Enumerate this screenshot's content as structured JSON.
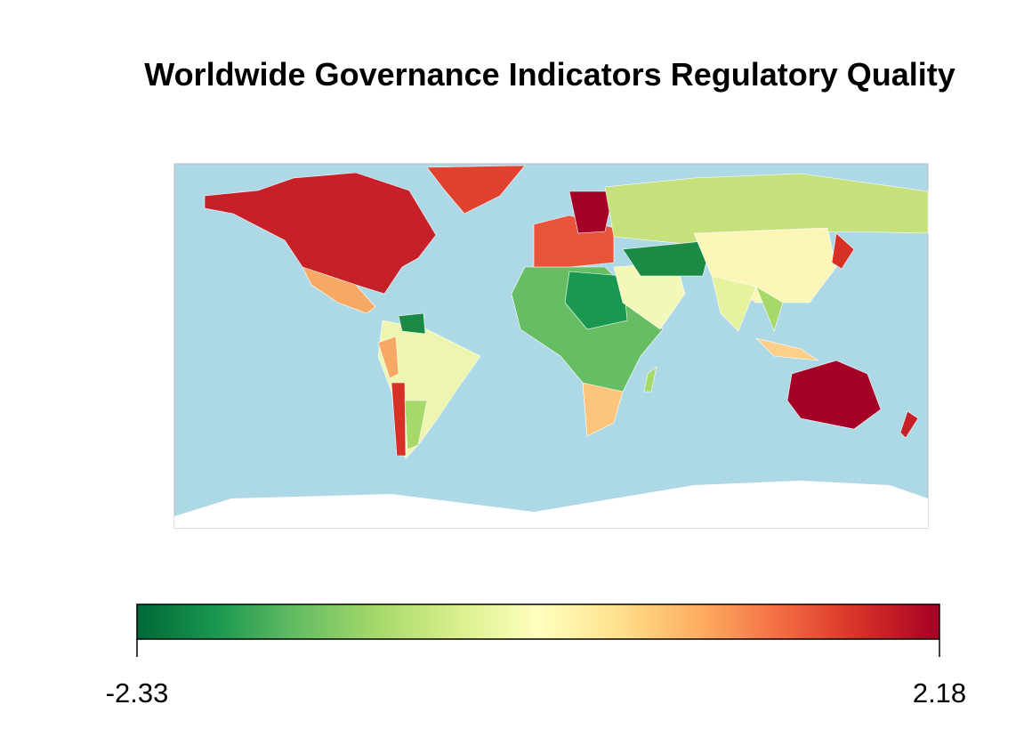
{
  "chart_data": {
    "type": "choropleth",
    "title": "Worldwide Governance Indicators  Regulatory Quality",
    "colorbar": {
      "range": [
        -2.33,
        2.18
      ],
      "ticks": [
        -2.33,
        2.18
      ],
      "colors": [
        "#006837",
        "#1a9850",
        "#66bd63",
        "#a6d96a",
        "#d9ef8b",
        "#ffffbf",
        "#fee08b",
        "#fdae61",
        "#f46d43",
        "#d73027",
        "#a50026"
      ]
    }
  }
}
